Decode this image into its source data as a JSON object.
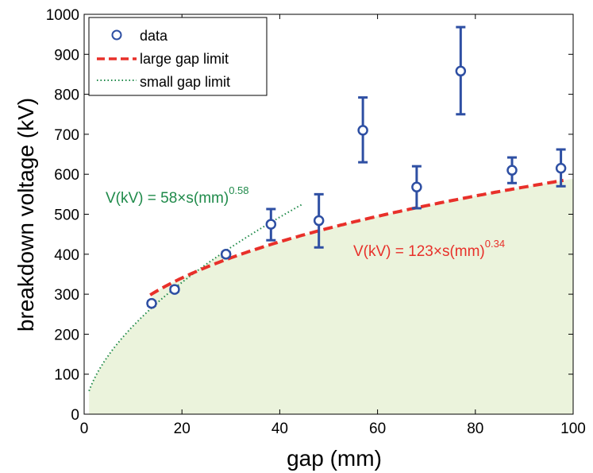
{
  "chart_data": {
    "type": "scatter",
    "xlabel": "gap (mm)",
    "ylabel": "breakdown voltage (kV)",
    "xlim": [
      0,
      100
    ],
    "ylim": [
      0,
      1000
    ],
    "x_ticks": [
      "0",
      "20",
      "40",
      "60",
      "80",
      "100"
    ],
    "y_ticks": [
      "0",
      "100",
      "200",
      "300",
      "400",
      "500",
      "600",
      "700",
      "800",
      "900",
      "1000"
    ],
    "grid": false,
    "legend_position": "top-left",
    "legend": [
      "data",
      "large gap limit",
      "small gap limit"
    ],
    "series": [
      {
        "name": "data",
        "style": "open-circle-errorbar",
        "color": "#2e4fa3",
        "points": [
          {
            "x": 13.8,
            "y": 277,
            "low": 272,
            "high": 282
          },
          {
            "x": 18.5,
            "y": 312,
            "low": 307,
            "high": 317
          },
          {
            "x": 29.0,
            "y": 400,
            "low": 394,
            "high": 405
          },
          {
            "x": 38.2,
            "y": 475,
            "low": 435,
            "high": 513
          },
          {
            "x": 48.0,
            "y": 484,
            "low": 417,
            "high": 550
          },
          {
            "x": 57.0,
            "y": 710,
            "low": 630,
            "high": 792
          },
          {
            "x": 68.0,
            "y": 568,
            "low": 515,
            "high": 620
          },
          {
            "x": 77.0,
            "y": 858,
            "low": 750,
            "high": 968
          },
          {
            "x": 87.5,
            "y": 610,
            "low": 578,
            "high": 642
          },
          {
            "x": 97.5,
            "y": 615,
            "low": 570,
            "high": 662
          }
        ]
      },
      {
        "name": "large gap limit",
        "style": "dashed-line",
        "color": "#e8302a",
        "coefficient": 123,
        "exponent": 0.34,
        "x_range": [
          13.5,
          98
        ]
      },
      {
        "name": "small gap limit",
        "style": "dotted-line",
        "color": "#1f8a4a",
        "coefficient": 58,
        "exponent": 0.58,
        "x_range": [
          1,
          44.5
        ]
      }
    ],
    "shaded_region": {
      "color": "#ebf3dc",
      "under": "large gap limit"
    },
    "annotations": [
      {
        "text": "V(kV) = 58×s(mm)",
        "sup": "0.58",
        "color": "#1f8a4a"
      },
      {
        "text": "V(kV) = 123×s(mm)",
        "sup": "0.34",
        "color": "#e8302a"
      }
    ]
  }
}
